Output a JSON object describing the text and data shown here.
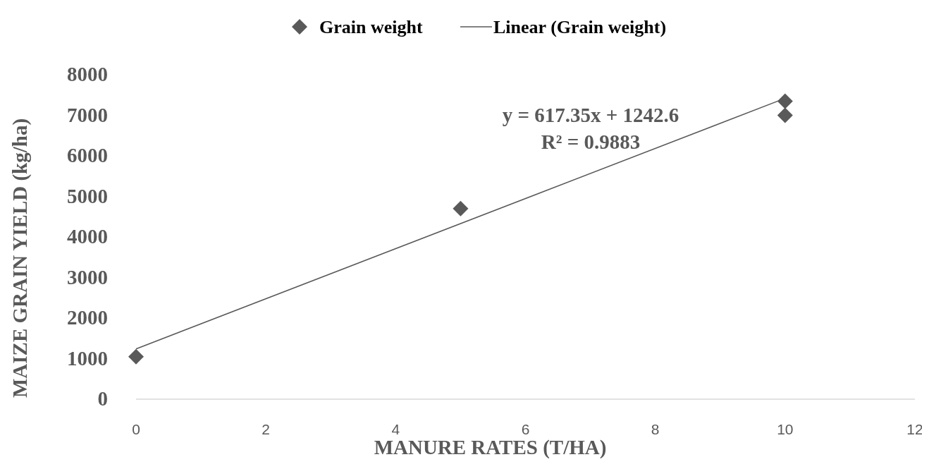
{
  "chart_data": {
    "type": "scatter",
    "xlabel": "MANURE RATES (T/HA)",
    "ylabel": "MAIZE GRAIN YIELD (kg/ha)",
    "xlim": [
      0,
      12
    ],
    "xticks": [
      0,
      2,
      4,
      6,
      8,
      10,
      12
    ],
    "ylim": [
      0,
      8000
    ],
    "yticks": [
      0,
      1000,
      2000,
      3000,
      4000,
      5000,
      6000,
      7000,
      8000
    ],
    "grid": false,
    "legend": "top",
    "marker": "diamond",
    "series": [
      {
        "name": "Grain weight",
        "color": "#595959",
        "x": [
          0,
          5,
          10,
          10
        ],
        "values": [
          1050,
          4700,
          7350,
          7000
        ]
      },
      {
        "name": "Linear (Grain weight)",
        "type": "line",
        "color": "#595959",
        "line_style": "solid",
        "marker": "none",
        "x": [
          0,
          10
        ],
        "values": [
          1240,
          7420
        ]
      }
    ],
    "annotations": [
      "y = 617.35x + 1242.6",
      "R² = 0.9883"
    ]
  }
}
